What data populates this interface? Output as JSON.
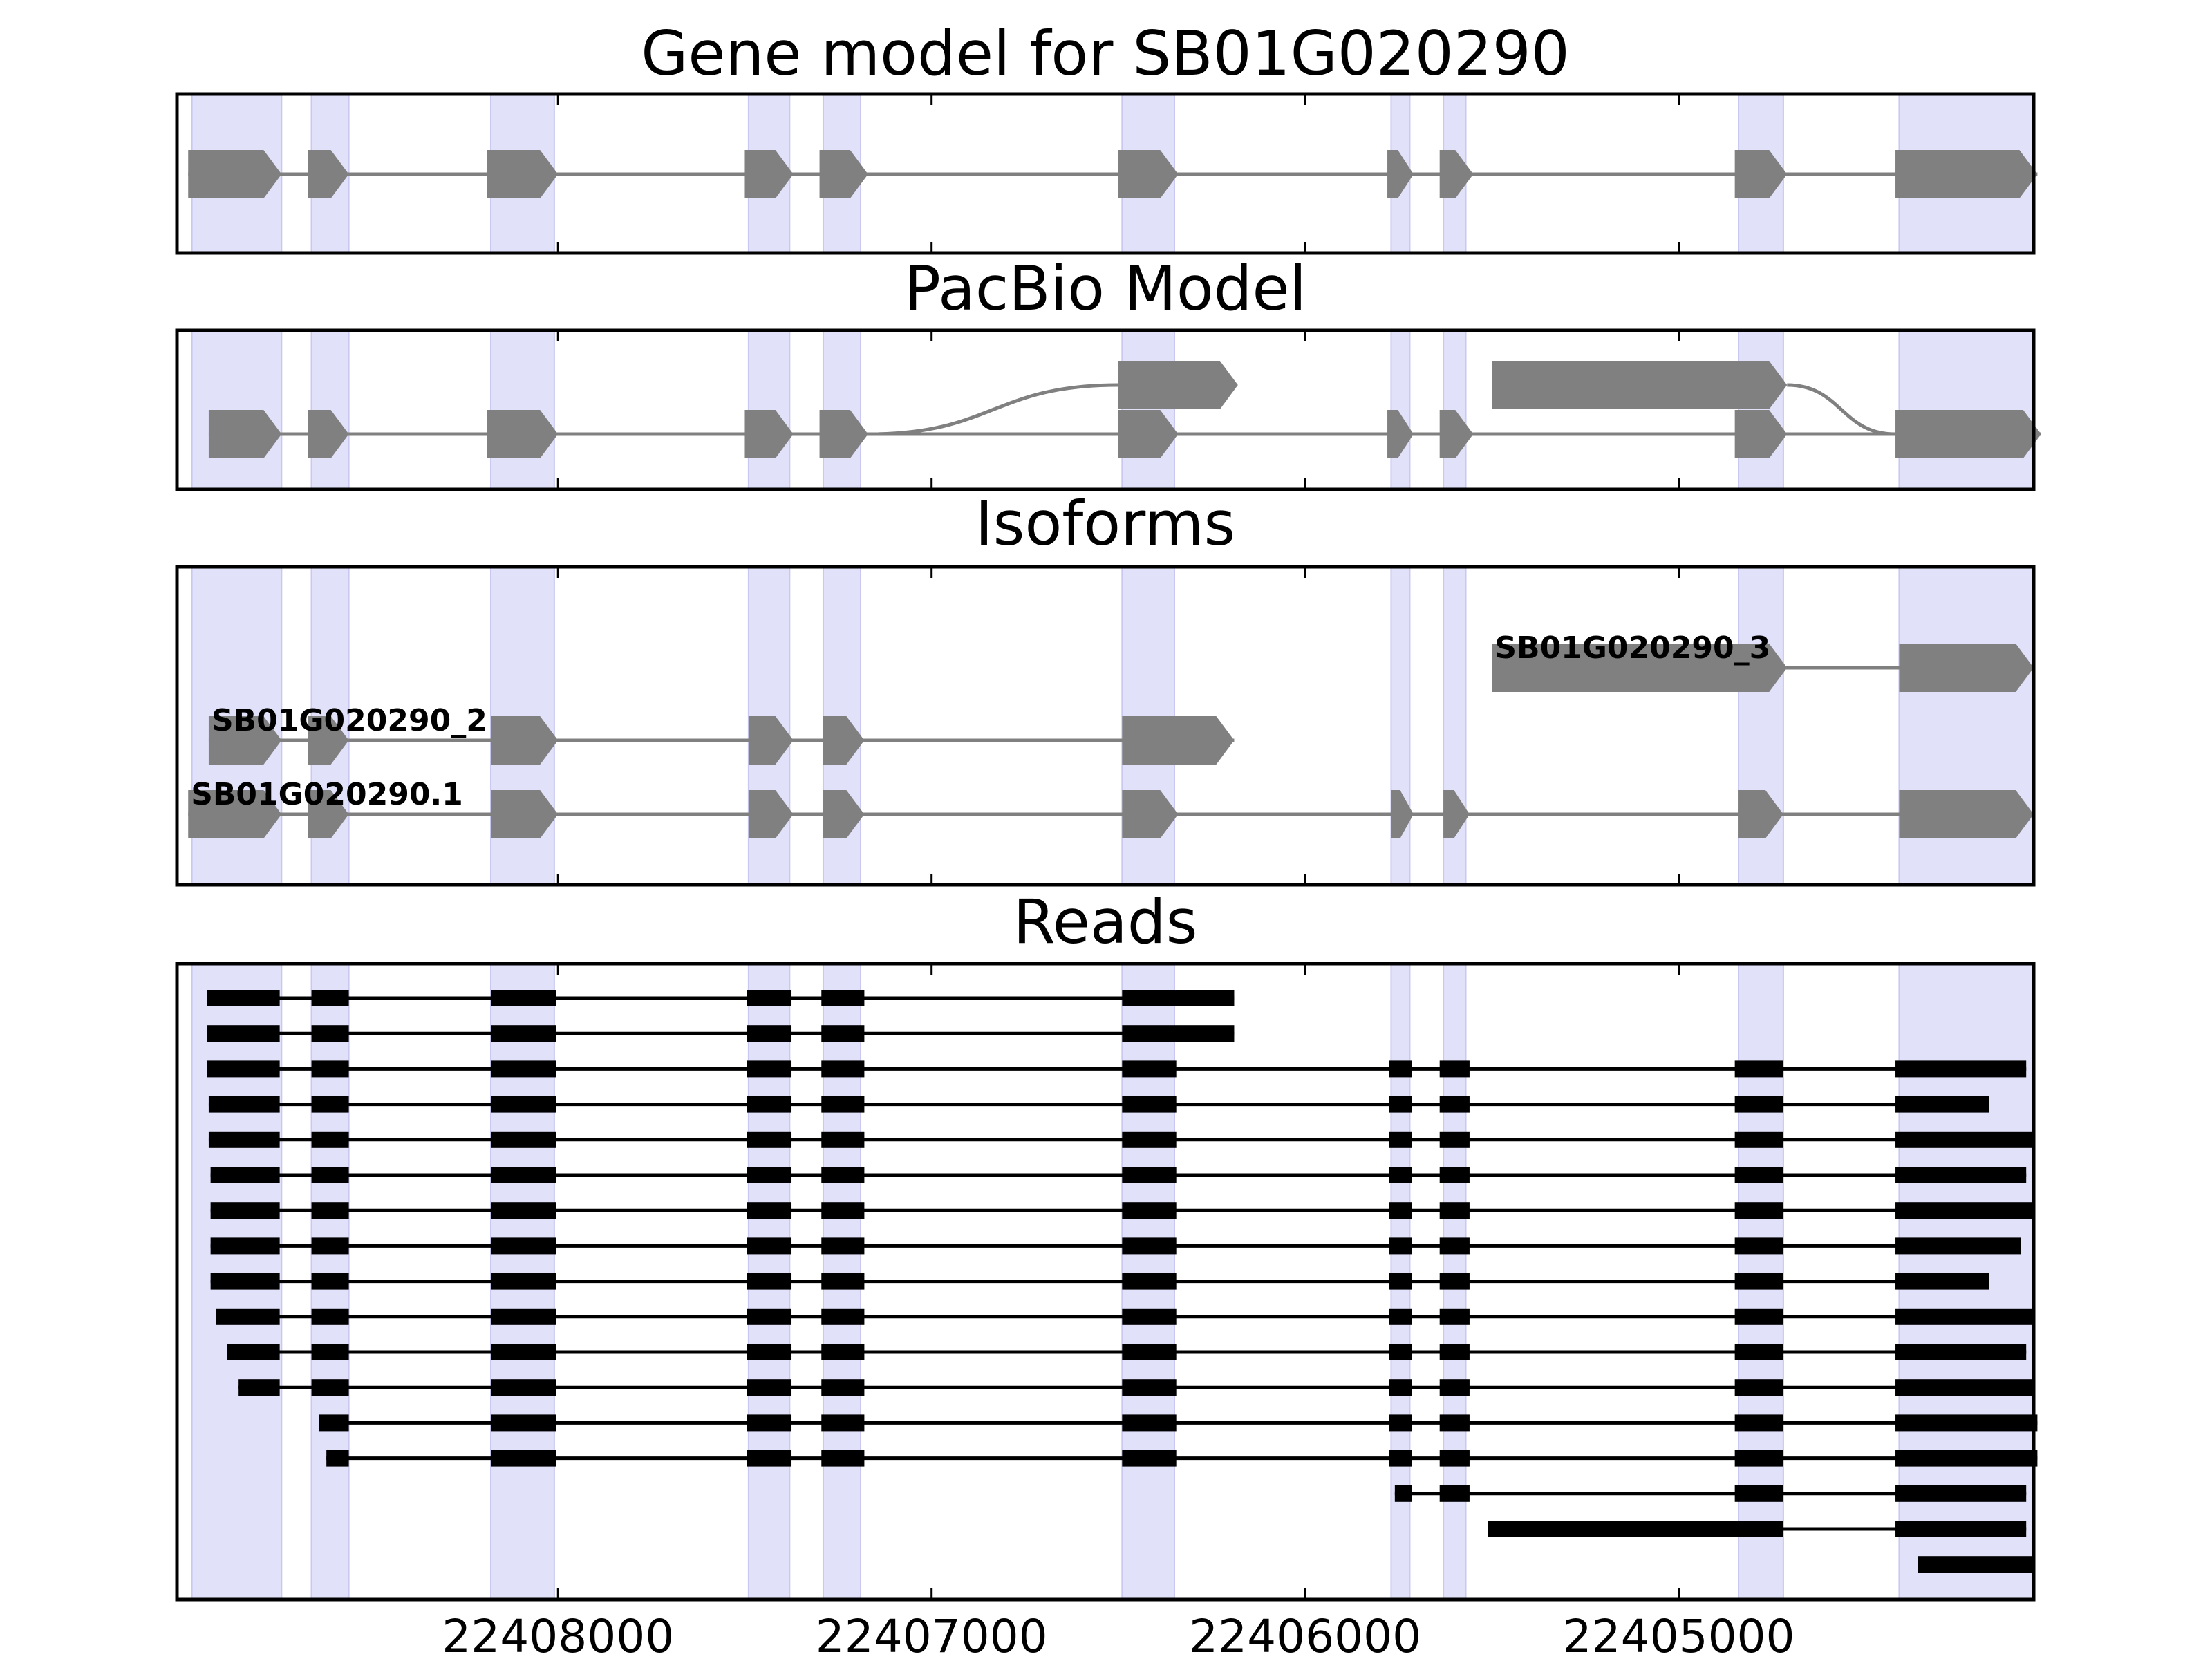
{
  "chart_data": {
    "type": "gene_model_track",
    "x_axis": {
      "direction": "reversed",
      "range": [
        22409020,
        22404050
      ],
      "ticks": [
        22408000,
        22407000,
        22406000,
        22405000
      ],
      "tick_labels": [
        "22408000",
        "22407000",
        "22406000",
        "22405000"
      ]
    },
    "colors": {
      "feature": "#808080",
      "read": "#000000",
      "exon_highlight": "#e1e1fa",
      "frame": "#000000"
    },
    "exon_highlights": [
      [
        22408980,
        22408740
      ],
      [
        22408660,
        22408560
      ],
      [
        22408180,
        22408010
      ],
      [
        22407490,
        22407380
      ],
      [
        22407290,
        22407190
      ],
      [
        22406490,
        22406350
      ],
      [
        22405770,
        22405720
      ],
      [
        22405630,
        22405570
      ],
      [
        22404840,
        22404720
      ],
      [
        22404410,
        22404050
      ]
    ],
    "panels": [
      {
        "title": "Gene model for SB01G020290",
        "kind": "features",
        "lanes": 1,
        "features": [
          {
            "lane": 0,
            "exons": [
              [
                22408990,
                22408740
              ],
              [
                22408670,
                22408560
              ],
              [
                22408190,
                22408000
              ],
              [
                22407500,
                22407370
              ],
              [
                22407300,
                22407170
              ],
              [
                22406500,
                22406340
              ],
              [
                22405780,
                22405710
              ],
              [
                22405640,
                22405550
              ],
              [
                22404850,
                22404710
              ],
              [
                22404420,
                22404040
              ]
            ]
          }
        ]
      },
      {
        "title": "PacBio Model",
        "kind": "features",
        "lanes": 2,
        "features": [
          {
            "lane": 0,
            "exons": [
              [
                22408935,
                22408740
              ],
              [
                22408670,
                22408560
              ],
              [
                22408190,
                22408000
              ],
              [
                22407500,
                22407370
              ],
              [
                22407300,
                22407170
              ],
              [
                22406500,
                22406340
              ],
              [
                22405780,
                22405710
              ],
              [
                22405640,
                22405550
              ],
              [
                22404850,
                22404710
              ],
              [
                22404420,
                22404030
              ]
            ]
          },
          {
            "lane": 1,
            "exons": [
              [
                22406500,
                22406180
              ]
            ]
          },
          {
            "lane": 1,
            "exons": [
              [
                22405500,
                22404710
              ]
            ]
          }
        ],
        "connectors": [
          {
            "from": [
              22407170,
              0
            ],
            "to": [
              22406500,
              1
            ]
          },
          {
            "from": [
              22404710,
              1
            ],
            "to": [
              22404420,
              0
            ]
          }
        ]
      },
      {
        "title": "Isoforms",
        "kind": "features",
        "lanes": 3,
        "features": [
          {
            "lane": 0,
            "label": "SB01G020290.1",
            "exons": [
              [
                22408990,
                22408740
              ],
              [
                22408670,
                22408560
              ],
              [
                22408180,
                22408000
              ],
              [
                22407490,
                22407370
              ],
              [
                22407290,
                22407180
              ],
              [
                22406490,
                22406340
              ],
              [
                22405770,
                22405710
              ],
              [
                22405630,
                22405560
              ],
              [
                22404840,
                22404720
              ],
              [
                22404410,
                22404050
              ]
            ]
          },
          {
            "lane": 1,
            "label": "SB01G020290_2",
            "exons": [
              [
                22408935,
                22408740
              ],
              [
                22408670,
                22408560
              ],
              [
                22408180,
                22408000
              ],
              [
                22407490,
                22407370
              ],
              [
                22407290,
                22407180
              ],
              [
                22406490,
                22406190
              ]
            ]
          },
          {
            "lane": 2,
            "label": "SB01G020290_3",
            "exons": [
              [
                22405500,
                22404710
              ],
              [
                22404410,
                22404050
              ]
            ]
          }
        ]
      },
      {
        "title": "Reads",
        "kind": "reads",
        "reads": [
          {
            "exons": [
              [
                22408940,
                22408745
              ],
              [
                22408660,
                22408560
              ],
              [
                22408180,
                22408005
              ],
              [
                22407495,
                22407375
              ],
              [
                22407295,
                22407180
              ],
              [
                22406490,
                22406190
              ]
            ]
          },
          {
            "exons": [
              [
                22408940,
                22408745
              ],
              [
                22408660,
                22408560
              ],
              [
                22408180,
                22408005
              ],
              [
                22407495,
                22407375
              ],
              [
                22407295,
                22407180
              ],
              [
                22406490,
                22406190
              ]
            ]
          },
          {
            "exons": [
              [
                22408940,
                22408745
              ],
              [
                22408660,
                22408560
              ],
              [
                22408180,
                22408005
              ],
              [
                22407495,
                22407375
              ],
              [
                22407295,
                22407180
              ],
              [
                22406490,
                22406345
              ],
              [
                22405775,
                22405715
              ],
              [
                22405640,
                22405560
              ],
              [
                22404850,
                22404720
              ],
              [
                22404420,
                22404070
              ]
            ]
          },
          {
            "exons": [
              [
                22408935,
                22408745
              ],
              [
                22408660,
                22408560
              ],
              [
                22408180,
                22408005
              ],
              [
                22407495,
                22407375
              ],
              [
                22407295,
                22407180
              ],
              [
                22406490,
                22406345
              ],
              [
                22405775,
                22405715
              ],
              [
                22405640,
                22405560
              ],
              [
                22404850,
                22404720
              ],
              [
                22404420,
                22404170
              ]
            ]
          },
          {
            "exons": [
              [
                22408935,
                22408745
              ],
              [
                22408660,
                22408560
              ],
              [
                22408180,
                22408005
              ],
              [
                22407495,
                22407375
              ],
              [
                22407295,
                22407180
              ],
              [
                22406490,
                22406345
              ],
              [
                22405775,
                22405715
              ],
              [
                22405640,
                22405560
              ],
              [
                22404850,
                22404720
              ],
              [
                22404420,
                22404050
              ]
            ]
          },
          {
            "exons": [
              [
                22408930,
                22408745
              ],
              [
                22408660,
                22408560
              ],
              [
                22408180,
                22408005
              ],
              [
                22407495,
                22407375
              ],
              [
                22407295,
                22407180
              ],
              [
                22406490,
                22406345
              ],
              [
                22405775,
                22405715
              ],
              [
                22405640,
                22405560
              ],
              [
                22404850,
                22404720
              ],
              [
                22404420,
                22404070
              ]
            ]
          },
          {
            "exons": [
              [
                22408930,
                22408745
              ],
              [
                22408660,
                22408560
              ],
              [
                22408180,
                22408005
              ],
              [
                22407495,
                22407375
              ],
              [
                22407295,
                22407180
              ],
              [
                22406490,
                22406345
              ],
              [
                22405775,
                22405715
              ],
              [
                22405640,
                22405560
              ],
              [
                22404850,
                22404720
              ],
              [
                22404420,
                22404055
              ]
            ]
          },
          {
            "exons": [
              [
                22408930,
                22408745
              ],
              [
                22408660,
                22408560
              ],
              [
                22408180,
                22408005
              ],
              [
                22407495,
                22407375
              ],
              [
                22407295,
                22407180
              ],
              [
                22406490,
                22406345
              ],
              [
                22405775,
                22405715
              ],
              [
                22405640,
                22405560
              ],
              [
                22404850,
                22404720
              ],
              [
                22404420,
                22404085
              ]
            ]
          },
          {
            "exons": [
              [
                22408930,
                22408745
              ],
              [
                22408660,
                22408560
              ],
              [
                22408180,
                22408005
              ],
              [
                22407495,
                22407375
              ],
              [
                22407295,
                22407180
              ],
              [
                22406490,
                22406345
              ],
              [
                22405775,
                22405715
              ],
              [
                22405640,
                22405560
              ],
              [
                22404850,
                22404720
              ],
              [
                22404420,
                22404170
              ]
            ]
          },
          {
            "exons": [
              [
                22408915,
                22408745
              ],
              [
                22408660,
                22408560
              ],
              [
                22408180,
                22408005
              ],
              [
                22407495,
                22407375
              ],
              [
                22407295,
                22407180
              ],
              [
                22406490,
                22406345
              ],
              [
                22405775,
                22405715
              ],
              [
                22405640,
                22405560
              ],
              [
                22404850,
                22404720
              ],
              [
                22404420,
                22404050
              ]
            ]
          },
          {
            "exons": [
              [
                22408885,
                22408745
              ],
              [
                22408660,
                22408560
              ],
              [
                22408180,
                22408005
              ],
              [
                22407495,
                22407375
              ],
              [
                22407295,
                22407180
              ],
              [
                22406490,
                22406345
              ],
              [
                22405775,
                22405715
              ],
              [
                22405640,
                22405560
              ],
              [
                22404850,
                22404720
              ],
              [
                22404420,
                22404070
              ]
            ]
          },
          {
            "exons": [
              [
                22408855,
                22408745
              ],
              [
                22408660,
                22408560
              ],
              [
                22408180,
                22408005
              ],
              [
                22407495,
                22407375
              ],
              [
                22407295,
                22407180
              ],
              [
                22406490,
                22406345
              ],
              [
                22405775,
                22405715
              ],
              [
                22405640,
                22405560
              ],
              [
                22404850,
                22404720
              ],
              [
                22404420,
                22404055
              ]
            ]
          },
          {
            "exons": [
              [
                22408640,
                22408560
              ],
              [
                22408180,
                22408005
              ],
              [
                22407495,
                22407375
              ],
              [
                22407295,
                22407180
              ],
              [
                22406490,
                22406345
              ],
              [
                22405775,
                22405715
              ],
              [
                22405640,
                22405560
              ],
              [
                22404850,
                22404720
              ],
              [
                22404420,
                22404040
              ]
            ]
          },
          {
            "exons": [
              [
                22408620,
                22408560
              ],
              [
                22408180,
                22408005
              ],
              [
                22407495,
                22407375
              ],
              [
                22407295,
                22407180
              ],
              [
                22406490,
                22406345
              ],
              [
                22405775,
                22405715
              ],
              [
                22405640,
                22405560
              ],
              [
                22404850,
                22404720
              ],
              [
                22404420,
                22404040
              ]
            ]
          },
          {
            "exons": [
              [
                22405760,
                22405715
              ],
              [
                22405640,
                22405560
              ],
              [
                22404850,
                22404720
              ],
              [
                22404420,
                22404070
              ]
            ]
          },
          {
            "exons": [
              [
                22405510,
                22404720
              ],
              [
                22404420,
                22404070
              ]
            ]
          },
          {
            "exons": [
              [
                22404360,
                22404055
              ]
            ]
          }
        ]
      }
    ]
  }
}
